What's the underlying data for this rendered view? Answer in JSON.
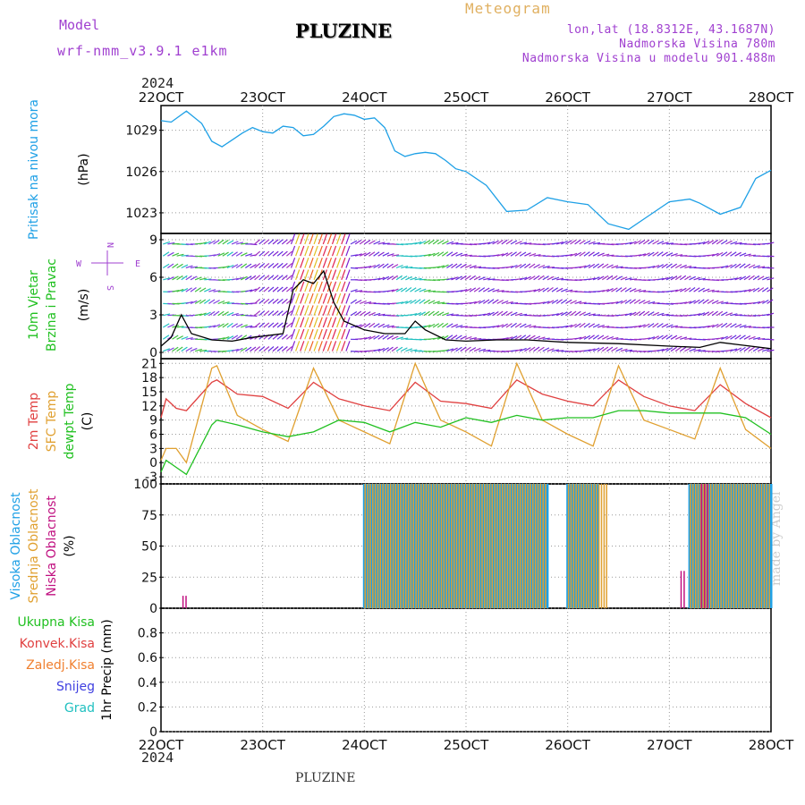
{
  "header": {
    "model_label": "Model",
    "model_name": "wrf-nmm_v3.9.1  e1km",
    "station": "PLUZINE",
    "meteogram": "Meteogram",
    "lonlat": "lon,lat (18.8312E, 43.1687N)",
    "elevation": "Nadmorska Visina 780m",
    "model_elevation": "Nadmorska Visina u modelu 901.488m",
    "year_top": "2024",
    "year_bottom": "2024",
    "footer_station": "PLUZINE",
    "credit": "made by Angel"
  },
  "dates": [
    "22OCT",
    "23OCT",
    "24OCT",
    "25OCT",
    "26OCT",
    "27OCT",
    "28OCT"
  ],
  "panels": {
    "pressure": {
      "labels": [
        {
          "text": "Pritisak na nivou mora",
          "color": "#1ea0e6"
        },
        {
          "text": "(hPa)",
          "color": "#000000"
        }
      ],
      "ticks": [
        "1029",
        "1026",
        "1023"
      ]
    },
    "wind": {
      "labels": [
        {
          "text": "10m Vjetar",
          "color": "#20c020"
        },
        {
          "text": "Brzina i Pravac",
          "color": "#20c020"
        },
        {
          "text": "(m/s)",
          "color": "#000000"
        }
      ],
      "ticks": [
        "9",
        "6",
        "3",
        "0"
      ],
      "compass": {
        "n": "N",
        "s": "S",
        "e": "E",
        "w": "W"
      }
    },
    "temperature": {
      "labels": [
        {
          "text": "2m Temp",
          "color": "#e04040"
        },
        {
          "text": "SFC Temp",
          "color": "#e0a030"
        },
        {
          "text": "dewpt Temp",
          "color": "#20c020"
        },
        {
          "text": "(C)",
          "color": "#000000"
        }
      ],
      "ticks": [
        "21",
        "18",
        "15",
        "12",
        "9",
        "6",
        "3",
        "0",
        "-3"
      ]
    },
    "clouds": {
      "labels": [
        {
          "text": "Visoka Oblacnost",
          "color": "#1ea0e6"
        },
        {
          "text": "Srednja Oblacnost",
          "color": "#e0a030"
        },
        {
          "text": "Niska Oblacnost",
          "color": "#c01080"
        },
        {
          "text": "(%)",
          "color": "#000000"
        }
      ],
      "ticks": [
        "100",
        "75",
        "50",
        "25",
        "0"
      ]
    },
    "precip": {
      "legend": [
        {
          "text": "Ukupna Kisa",
          "color": "#20c020"
        },
        {
          "text": "Konvek.Kisa",
          "color": "#e04040"
        },
        {
          "text": "Zaledj.Kisa",
          "color": "#f08030"
        },
        {
          "text": "Snijeg",
          "color": "#4040e0"
        },
        {
          "text": "Grad",
          "color": "#20c0c0"
        }
      ],
      "ylabel": "1hr Precip (mm)",
      "ticks": [
        "0.8",
        "0.6",
        "0.4",
        "0.2",
        "0"
      ]
    }
  },
  "chart_data": [
    {
      "type": "line",
      "panel": "pressure",
      "ylabel": "(hPa)",
      "ylim": [
        1021.5,
        1030.8
      ],
      "x_days": [
        22.0,
        22.1,
        22.25,
        22.4,
        22.5,
        22.6,
        22.7,
        22.8,
        22.9,
        23.0,
        23.1,
        23.2,
        23.3,
        23.4,
        23.5,
        23.6,
        23.7,
        23.8,
        23.9,
        24.0,
        24.1,
        24.2,
        24.3,
        24.4,
        24.5,
        24.6,
        24.7,
        24.8,
        24.9,
        25.0,
        25.2,
        25.4,
        25.6,
        25.8,
        26.0,
        26.2,
        26.4,
        26.6,
        26.8,
        27.0,
        27.2,
        27.3,
        27.5,
        27.7,
        27.85,
        28.0
      ],
      "series": [
        {
          "color": "#1ea0e6",
          "values": [
            1029.7,
            1029.6,
            1030.4,
            1029.5,
            1028.2,
            1027.8,
            1028.3,
            1028.8,
            1029.2,
            1028.9,
            1028.8,
            1029.3,
            1029.2,
            1028.6,
            1028.7,
            1029.3,
            1030.0,
            1030.2,
            1030.1,
            1029.8,
            1029.9,
            1029.2,
            1027.5,
            1027.1,
            1027.3,
            1027.4,
            1027.3,
            1026.8,
            1026.2,
            1026.0,
            1025.0,
            1023.1,
            1023.2,
            1024.1,
            1023.8,
            1023.6,
            1022.2,
            1021.8,
            1022.8,
            1023.8,
            1024.0,
            1023.7,
            1022.9,
            1023.4,
            1025.5,
            1026.1
          ]
        }
      ]
    },
    {
      "type": "line",
      "panel": "wind",
      "ylabel": "(m/s)",
      "ylim": [
        -0.5,
        9.5
      ],
      "x_days": [
        22.0,
        22.1,
        22.2,
        22.3,
        22.5,
        22.7,
        22.9,
        23.0,
        23.2,
        23.3,
        23.4,
        23.5,
        23.6,
        23.7,
        23.8,
        24.0,
        24.2,
        24.4,
        24.5,
        24.6,
        24.8,
        25.0,
        25.3,
        25.6,
        26.0,
        26.5,
        27.0,
        27.3,
        27.5,
        27.7,
        28.0
      ],
      "series": [
        {
          "color": "#000000",
          "values": [
            0.5,
            1.2,
            3.0,
            1.5,
            1.0,
            0.9,
            1.2,
            1.3,
            1.5,
            5.0,
            5.8,
            5.5,
            6.5,
            4.0,
            2.5,
            1.8,
            1.5,
            1.5,
            2.5,
            1.8,
            1.0,
            0.9,
            1.0,
            1.0,
            0.8,
            0.7,
            0.5,
            0.4,
            0.8,
            0.6,
            0.3
          ]
        }
      ]
    },
    {
      "type": "line",
      "panel": "temperature",
      "ylabel": "(C)",
      "ylim": [
        -4.5,
        22
      ],
      "x_days": [
        22.0,
        22.05,
        22.15,
        22.25,
        22.5,
        22.55,
        22.75,
        23.0,
        23.25,
        23.5,
        23.75,
        24.0,
        24.25,
        24.5,
        24.75,
        25.0,
        25.25,
        25.5,
        25.75,
        26.0,
        26.25,
        26.5,
        26.75,
        27.0,
        27.25,
        27.5,
        27.75,
        28.0
      ],
      "series": [
        {
          "name": "2m Temp",
          "color": "#e04040",
          "values": [
            9.5,
            13.5,
            11.5,
            11.0,
            17.0,
            17.5,
            14.5,
            14.0,
            11.5,
            17.0,
            13.5,
            12.0,
            11.0,
            17.0,
            13.0,
            12.5,
            11.5,
            17.5,
            14.5,
            13.0,
            12.0,
            17.5,
            14.0,
            12.0,
            11.0,
            16.5,
            12.5,
            9.5
          ]
        },
        {
          "name": "SFC Temp",
          "color": "#e0a030",
          "values": [
            0.5,
            3.0,
            3.0,
            0.0,
            20.0,
            20.5,
            10.0,
            7.0,
            4.5,
            20.0,
            9.0,
            6.5,
            4.0,
            21.0,
            9.0,
            6.5,
            3.5,
            21.0,
            9.0,
            6.0,
            3.5,
            20.5,
            9.0,
            7.0,
            5.0,
            20.0,
            7.0,
            3.0
          ]
        },
        {
          "name": "dewpt Temp",
          "color": "#20c020",
          "values": [
            -2.0,
            0.5,
            -1.0,
            -2.5,
            8.0,
            9.0,
            8.0,
            6.5,
            5.5,
            6.5,
            9.0,
            8.5,
            6.5,
            8.5,
            7.5,
            9.5,
            8.5,
            10.0,
            9.0,
            9.5,
            9.5,
            11.0,
            11.0,
            10.5,
            10.5,
            10.5,
            9.5,
            6.0
          ]
        }
      ]
    },
    {
      "type": "bar",
      "panel": "clouds",
      "ylabel": "(%)",
      "ylim": [
        0,
        100
      ],
      "series": [
        {
          "name": "Visoka Oblacnost",
          "color": "#1ea0e6",
          "segments": [
            [
              24.0,
              25.8,
              100
            ],
            [
              26.0,
              26.3,
              100
            ],
            [
              27.2,
              28.0,
              100
            ]
          ]
        },
        {
          "name": "Srednja Oblacnost",
          "color": "#e0a030",
          "segments": [
            [
              24.0,
              25.8,
              100
            ],
            [
              26.0,
              26.4,
              100
            ],
            [
              27.2,
              28.0,
              100
            ]
          ]
        },
        {
          "name": "Niska Oblacnost",
          "color": "#c01080",
          "segments": [
            [
              22.2,
              22.25,
              10
            ],
            [
              27.1,
              27.15,
              30
            ],
            [
              27.3,
              27.4,
              100
            ]
          ]
        }
      ]
    },
    {
      "type": "bar",
      "panel": "precip",
      "ylabel": "1hr Precip (mm)",
      "ylim": [
        0,
        1.0
      ],
      "series": [
        {
          "name": "Ukupna Kisa",
          "color": "#20c020",
          "values": []
        },
        {
          "name": "Konvek.Kisa",
          "color": "#e04040",
          "values": []
        },
        {
          "name": "Zaledj.Kisa",
          "color": "#f08030",
          "values": []
        },
        {
          "name": "Snijeg",
          "color": "#4040e0",
          "values": []
        },
        {
          "name": "Grad",
          "color": "#20c0c0",
          "values": []
        }
      ]
    }
  ]
}
